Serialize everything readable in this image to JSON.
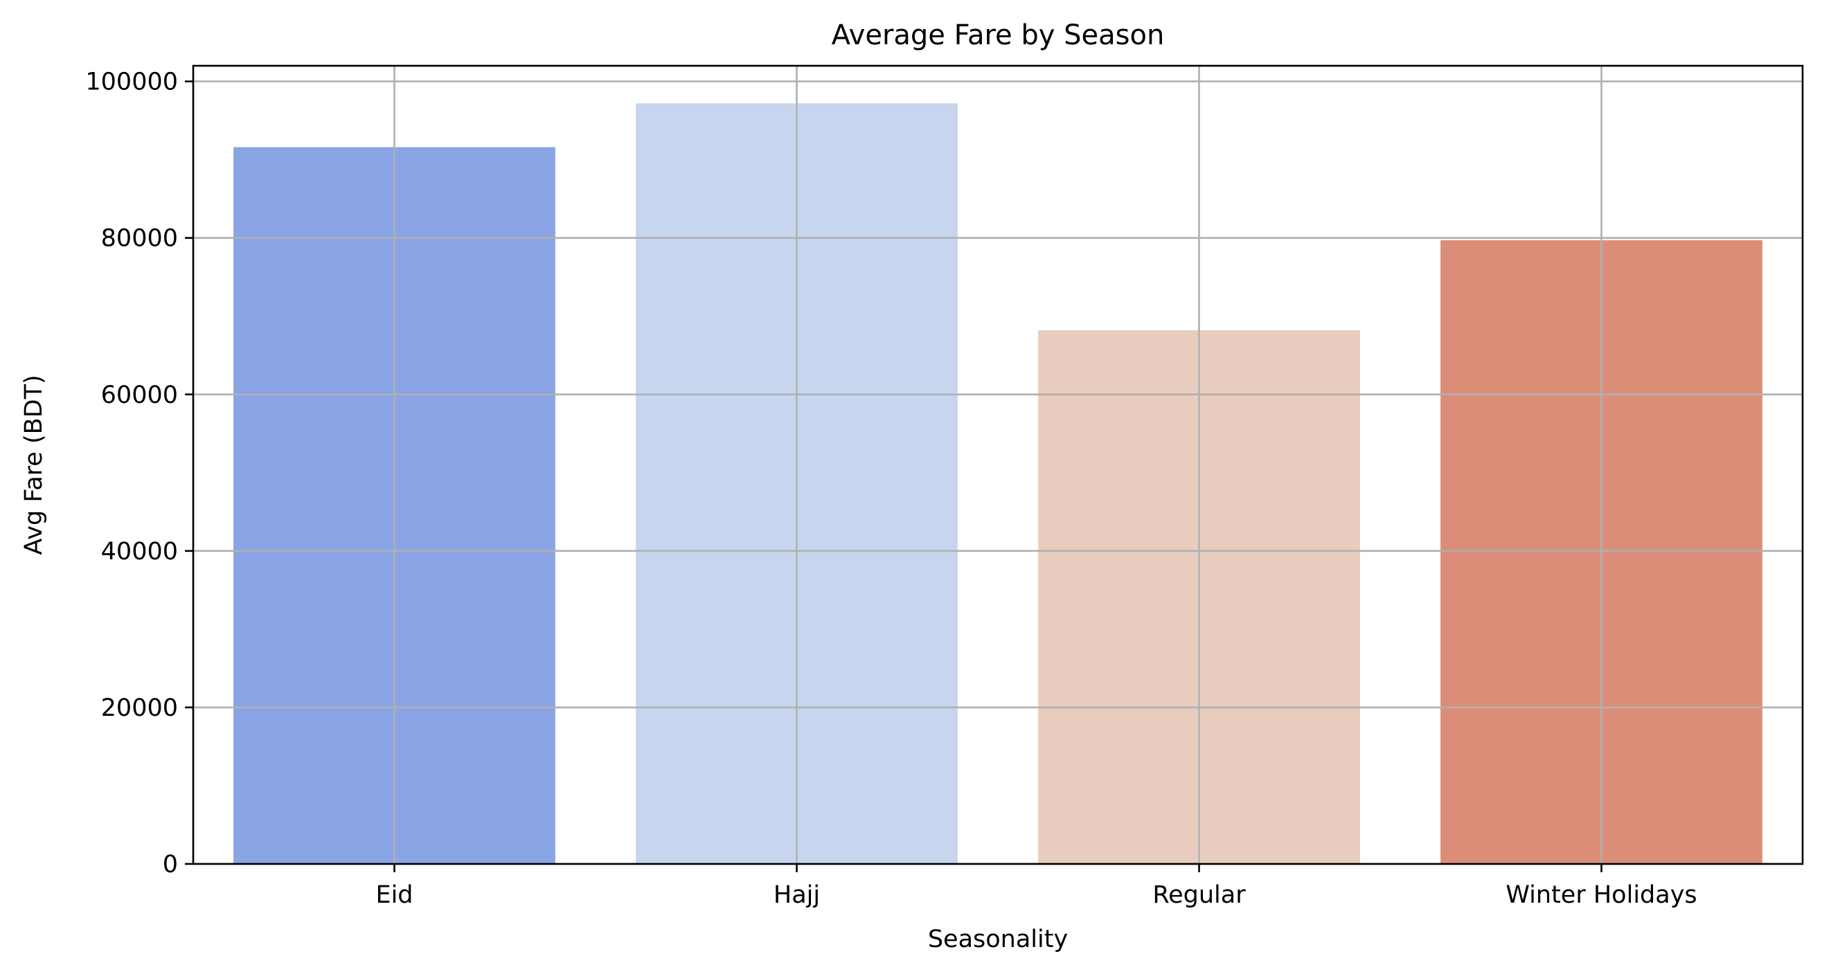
{
  "chart_data": {
    "type": "bar",
    "title": "Average Fare by Season",
    "xlabel": "Seasonality",
    "ylabel": "Avg Fare (BDT)",
    "categories": [
      "Eid",
      "Hajj",
      "Regular",
      "Winter Holidays"
    ],
    "values": [
      91600,
      97200,
      68200,
      79700
    ],
    "colors": [
      "#8aa5e6",
      "#c7d5ef",
      "#e8cdbf",
      "#dc8d77"
    ],
    "ylim": [
      0,
      102000
    ],
    "yticks": [
      0,
      20000,
      40000,
      60000,
      80000,
      100000
    ],
    "ytick_labels": [
      "0",
      "20000",
      "40000",
      "60000",
      "80000",
      "100000"
    ],
    "grid": true,
    "legend": "none"
  }
}
